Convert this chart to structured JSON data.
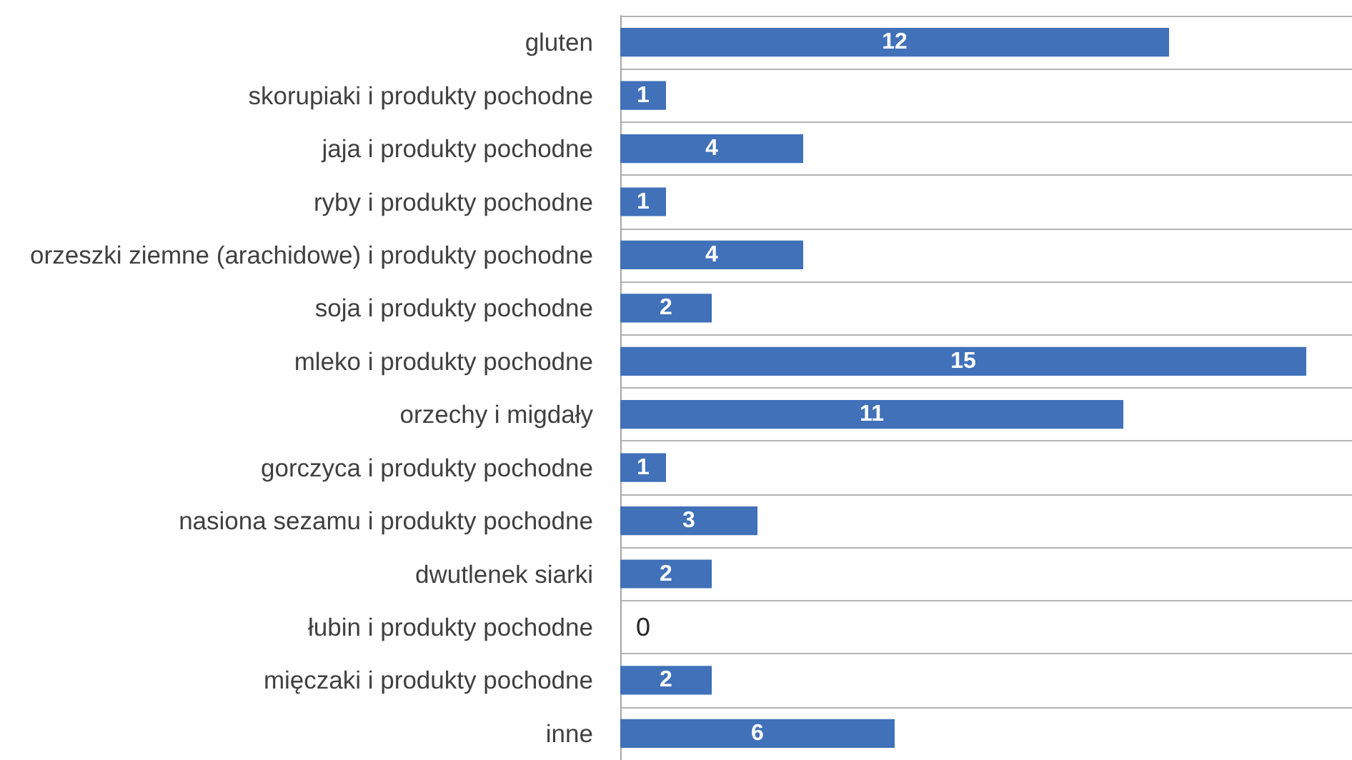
{
  "chart_data": {
    "type": "bar",
    "orientation": "horizontal",
    "categories": [
      "gluten",
      "skorupiaki i produkty pochodne",
      "jaja i produkty pochodne",
      "ryby i produkty pochodne",
      "orzeszki ziemne (arachidowe) i produkty pochodne",
      "soja i produkty pochodne",
      "mleko i produkty pochodne",
      "orzechy i migdały",
      "gorczyca i produkty pochodne",
      "nasiona sezamu i produkty pochodne",
      "dwutlenek siarki",
      "łubin i produkty pochodne",
      "mięczaki i produkty pochodne",
      "inne"
    ],
    "values": [
      12,
      1,
      4,
      1,
      4,
      2,
      15,
      11,
      1,
      3,
      2,
      0,
      2,
      6
    ],
    "color": "#4071b9",
    "xlim": [
      0,
      16
    ],
    "data_labels": true,
    "grid": "y",
    "tick_labels": "y"
  }
}
